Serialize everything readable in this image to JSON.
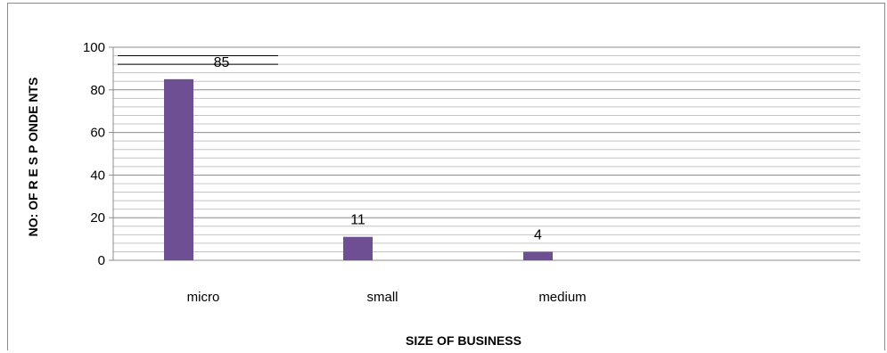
{
  "chart_data": {
    "type": "bar",
    "categories": [
      "micro",
      "small",
      "medium"
    ],
    "values": [
      85,
      11,
      4
    ],
    "data_labels": [
      "85",
      "11",
      "4"
    ],
    "xlabel": "SIZE OF BUSINESS",
    "ylabel": "NO: OF R E S P ONDE NTS",
    "ylim": [
      0,
      100
    ],
    "yticks": [
      "0",
      "20",
      "40",
      "60",
      "80",
      "100"
    ],
    "grid": true,
    "bar_color": "#6f4f93"
  }
}
